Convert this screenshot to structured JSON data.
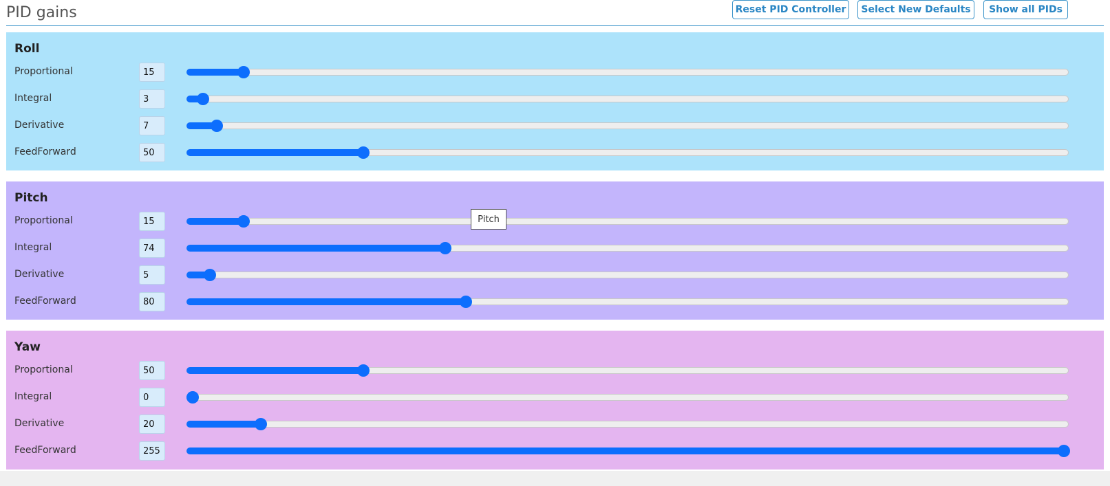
{
  "header": {
    "title": "PID gains",
    "buttons": [
      {
        "label": "Reset PID Controller"
      },
      {
        "label": "Select New Defaults"
      },
      {
        "label": "Show all PIDs"
      }
    ]
  },
  "slider_max": 255,
  "sections": [
    {
      "title": "Roll",
      "color": "#ade3fb",
      "rows": [
        {
          "label": "Proportional",
          "value": "15"
        },
        {
          "label": "Integral",
          "value": "3"
        },
        {
          "label": "Derivative",
          "value": "7"
        },
        {
          "label": "FeedForward",
          "value": "50"
        }
      ]
    },
    {
      "title": "Pitch",
      "color": "#c3b5fc",
      "rows": [
        {
          "label": "Proportional",
          "value": "15"
        },
        {
          "label": "Integral",
          "value": "74"
        },
        {
          "label": "Derivative",
          "value": "5"
        },
        {
          "label": "FeedForward",
          "value": "80"
        }
      ]
    },
    {
      "title": "Yaw",
      "color": "#e4b5f0",
      "rows": [
        {
          "label": "Proportional",
          "value": "50"
        },
        {
          "label": "Integral",
          "value": "0"
        },
        {
          "label": "Derivative",
          "value": "20"
        },
        {
          "label": "FeedForward",
          "value": "255"
        }
      ]
    }
  ],
  "tooltip": {
    "text": "Pitch"
  },
  "colors": {
    "accent": "#0d6efd",
    "button_border": "#3a93c9",
    "button_text": "#2a86c4"
  }
}
